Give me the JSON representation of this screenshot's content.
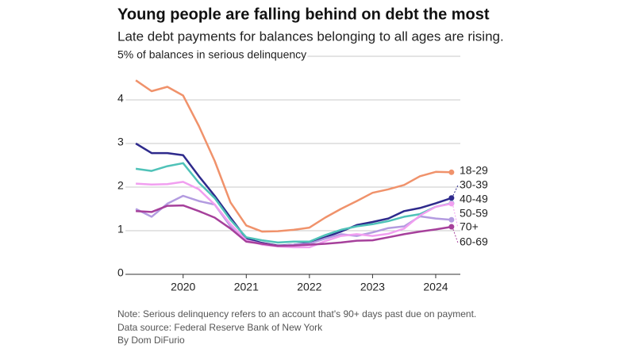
{
  "chart_data": {
    "type": "line",
    "title": "Young people are falling behind on debt the most",
    "subtitle": "Late debt payments for balances belonging to all ages are rising.",
    "x": [
      2019.25,
      2019.5,
      2019.75,
      2020,
      2020.25,
      2020.5,
      2020.75,
      2021,
      2021.25,
      2021.5,
      2021.75,
      2022,
      2022.25,
      2022.5,
      2022.75,
      2023,
      2023.25,
      2023.5,
      2023.75,
      2024,
      2024.25
    ],
    "xlim": [
      2018.96,
      2024.39
    ],
    "xticks": [
      2020,
      2021,
      2022,
      2023,
      2024
    ],
    "ylim": [
      0,
      5
    ],
    "yticks": [
      0,
      1,
      2,
      3,
      4,
      {
        "value": 5,
        "label": "5% of balances in serious delinquency"
      }
    ],
    "grid": true,
    "series": [
      {
        "name": "18-29",
        "color": "#f0926b",
        "values": [
          4.45,
          4.2,
          4.3,
          4.1,
          3.4,
          2.6,
          1.65,
          1.12,
          0.98,
          0.99,
          1.02,
          1.07,
          1.3,
          1.5,
          1.68,
          1.87,
          1.95,
          2.05,
          2.25,
          2.35,
          2.34
        ]
      },
      {
        "name": "30-39",
        "color": "#2e2a8c",
        "values": [
          3.0,
          2.78,
          2.78,
          2.73,
          2.25,
          1.8,
          1.3,
          0.82,
          0.72,
          0.66,
          0.68,
          0.72,
          0.85,
          0.98,
          1.13,
          1.2,
          1.28,
          1.45,
          1.52,
          1.63,
          1.75
        ]
      },
      {
        "name": "40-49",
        "color": "#4fc2b8",
        "values": [
          2.42,
          2.37,
          2.48,
          2.55,
          2.1,
          1.75,
          1.25,
          0.85,
          0.78,
          0.73,
          0.75,
          0.75,
          0.9,
          1.02,
          1.1,
          1.15,
          1.22,
          1.32,
          1.38,
          1.55,
          1.63
        ]
      },
      {
        "name": "50-59",
        "color": "#b39be0",
        "values": [
          1.5,
          1.32,
          1.62,
          1.8,
          1.68,
          1.6,
          1.1,
          0.78,
          0.7,
          0.65,
          0.68,
          0.7,
          0.82,
          0.92,
          0.88,
          0.96,
          1.06,
          1.1,
          1.33,
          1.28,
          1.25
        ]
      },
      {
        "name": "70+",
        "color": "#f19ff0",
        "values": [
          2.08,
          2.06,
          2.07,
          2.12,
          1.95,
          1.6,
          1.15,
          0.78,
          0.68,
          0.64,
          0.62,
          0.62,
          0.76,
          0.88,
          0.92,
          0.88,
          0.93,
          1.05,
          1.35,
          1.55,
          1.62
        ]
      },
      {
        "name": "60-69",
        "color": "#a6409b",
        "values": [
          1.45,
          1.43,
          1.57,
          1.58,
          1.45,
          1.3,
          1.05,
          0.75,
          0.7,
          0.65,
          0.66,
          0.68,
          0.7,
          0.73,
          0.77,
          0.78,
          0.85,
          0.92,
          0.98,
          1.03,
          1.09
        ]
      }
    ],
    "notes": [
      "Note: Serious delinquency refers to an account that's 90+ days past due on payment.",
      "Data source: Federal Reserve Bank of New York",
      "By Dom DiFurio"
    ]
  }
}
